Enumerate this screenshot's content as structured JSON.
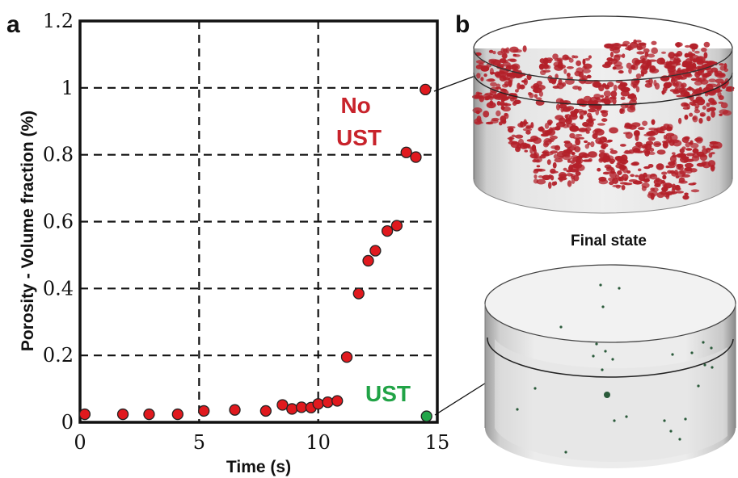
{
  "panels": {
    "left_letter": "a",
    "right_letter": "b"
  },
  "chart_data": {
    "type": "scatter",
    "title": "",
    "xlabel": "Time (s)",
    "ylabel": "Porosity - Volume fraction (%)",
    "xlim": [
      0,
      15
    ],
    "ylim": [
      0,
      1.2
    ],
    "xticks": [
      "0",
      "5",
      "10",
      "15"
    ],
    "yticks": [
      "0",
      "0.2",
      "0.4",
      "0.6",
      "0.8",
      "1",
      "1.2"
    ],
    "xtick_values": [
      0,
      5,
      10,
      15
    ],
    "ytick_values": [
      0,
      0.2,
      0.4,
      0.6,
      0.8,
      1.0,
      1.2
    ],
    "grid": true,
    "series": [
      {
        "name": "No UST",
        "color": "#e0191e",
        "x": [
          0.2,
          1.8,
          2.9,
          4.1,
          5.2,
          6.5,
          7.8,
          8.5,
          8.9,
          9.3,
          9.7,
          10.0,
          10.4,
          10.8,
          11.2,
          11.7,
          12.1,
          12.4,
          12.9,
          13.3,
          13.7,
          14.1,
          14.5
        ],
        "y": [
          0.024,
          0.024,
          0.024,
          0.024,
          0.034,
          0.037,
          0.034,
          0.052,
          0.04,
          0.045,
          0.044,
          0.055,
          0.06,
          0.064,
          0.195,
          0.385,
          0.483,
          0.513,
          0.572,
          0.588,
          0.807,
          0.793,
          0.995
        ]
      },
      {
        "name": "UST",
        "color": "#22a64a",
        "x": [
          14.55
        ],
        "y": [
          0.018
        ]
      }
    ],
    "annotations": [
      {
        "text_lines": [
          "No",
          "UST"
        ],
        "color": "#c8232b"
      },
      {
        "text_lines": [
          "UST"
        ],
        "color": "#21a346"
      }
    ]
  },
  "images": {
    "top_cylinder": {
      "label": "porous sample 3D render",
      "particle_color": "#b32029"
    },
    "bottom_cylinder": {
      "label": "dense sample 3D render",
      "particle_color": "#2a5a3a"
    },
    "caption": "Final state"
  }
}
